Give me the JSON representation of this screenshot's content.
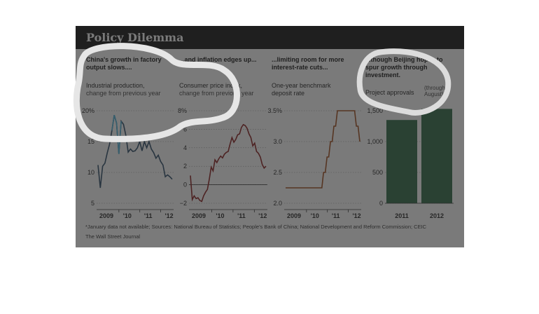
{
  "title": "Policy Dilemma",
  "panels": [
    {
      "heading": "China's growth in factory output slows....",
      "subtitle": "Industrial production,",
      "subtitle2": "change from previous year"
    },
    {
      "heading": "...and inflation edges up...",
      "subtitle": "Consumer price index,",
      "subtitle2": "change from previous year"
    },
    {
      "heading": "...limiting room for more interest-rate cuts...",
      "subtitle": "One-year benchmark",
      "subtitle2": "deposit rate"
    },
    {
      "heading": "...though Beijing hopes to spur growth through investment.",
      "subtitle": "Project approvals",
      "subtitle2": "(through August)"
    }
  ],
  "footnote": "*January data not available; Sources: National Bureau of Statistics; People's Bank of China; National Development and Reform Commission; CEIC",
  "credit": "The Wall Street Journal",
  "chart_data": [
    {
      "type": "line",
      "title": "China's growth in factory output slows....",
      "ylabel": "Industrial production, change from previous year",
      "y_ticks": [
        "5",
        "10",
        "15",
        "20%"
      ],
      "ylim": [
        5,
        20
      ],
      "x_ticks": [
        "2009",
        "'10",
        "'11",
        "'12"
      ],
      "series": [
        {
          "values": [
            11.2,
            7.5,
            11.0,
            11.5,
            13.2,
            14.6,
            16.8,
            19.3,
            18.0,
            13.0,
            18.3,
            17.8,
            16.0,
            13.3,
            13.8,
            13.4,
            13.5,
            14.0,
            15.0,
            13.5,
            15.0,
            14.0,
            15.0,
            13.8,
            13.2,
            12.3,
            12.8,
            11.8,
            11.2,
            9.3,
            9.6,
            9.3,
            8.9
          ]
        }
      ]
    },
    {
      "type": "line",
      "title": "...and inflation edges up...",
      "ylabel": "Consumer price index, change from previous year",
      "y_ticks": [
        "−2",
        "0",
        "2",
        "4",
        "6",
        "8%"
      ],
      "ylim": [
        -2,
        8
      ],
      "x_ticks": [
        "2009",
        "'10",
        "'11",
        "'12"
      ],
      "series": [
        {
          "values": [
            1.0,
            -1.6,
            -1.2,
            -1.5,
            -1.4,
            -1.7,
            -1.8,
            -1.2,
            -0.8,
            -0.5,
            0.6,
            1.9,
            1.5,
            2.7,
            2.4,
            2.8,
            3.1,
            2.9,
            3.3,
            3.5,
            3.6,
            4.4,
            5.1,
            4.6,
            4.9,
            5.4,
            5.5,
            6.2,
            6.5,
            6.4,
            6.1,
            5.5,
            5.1,
            4.2,
            4.5,
            3.6,
            3.4,
            3.0,
            2.2,
            1.8,
            2.0
          ]
        }
      ]
    },
    {
      "type": "line",
      "title": "...limiting room for more interest-rate cuts...",
      "ylabel": "One-year benchmark deposit rate",
      "y_ticks": [
        "2.0",
        "2.5",
        "3.0",
        "3.5%"
      ],
      "ylim": [
        2.0,
        3.5
      ],
      "x_ticks": [
        "2009",
        "'10",
        "'11",
        "'12"
      ],
      "series": [
        {
          "values": [
            2.25,
            2.25,
            2.25,
            2.25,
            2.25,
            2.25,
            2.25,
            2.25,
            2.25,
            2.25,
            2.25,
            2.25,
            2.25,
            2.25,
            2.25,
            2.25,
            2.25,
            2.25,
            2.25,
            2.25,
            2.25,
            2.25,
            2.5,
            2.5,
            2.75,
            2.75,
            3.0,
            3.0,
            3.25,
            3.25,
            3.5,
            3.5,
            3.5,
            3.5,
            3.5,
            3.5,
            3.5,
            3.5,
            3.5,
            3.5,
            3.5,
            3.25,
            3.25,
            3.0
          ]
        }
      ]
    },
    {
      "type": "bar",
      "title": "...though Beijing hopes to spur growth through investment.",
      "ylabel": "Project approvals",
      "categories": [
        "2011",
        "2012"
      ],
      "values": [
        1350,
        1560
      ],
      "y_ticks": [
        "0",
        "500",
        "1,000",
        "1,500"
      ],
      "ylim": [
        0,
        1500
      ],
      "colors": {
        "bar": "#2e6a46"
      }
    }
  ],
  "colors": {
    "title_bar": "#111111",
    "line1": "#2a4a66",
    "line2": "#8a1c1c",
    "line3": "#a04a1a",
    "highlight": "#4fb8e0"
  }
}
